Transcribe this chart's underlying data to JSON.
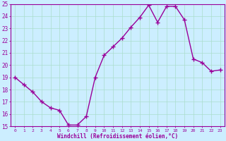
{
  "x": [
    0,
    1,
    2,
    3,
    4,
    5,
    6,
    7,
    8,
    9,
    10,
    11,
    12,
    13,
    14,
    15,
    16,
    17,
    18,
    19,
    20,
    21,
    22,
    23
  ],
  "y": [
    19.0,
    18.4,
    17.8,
    17.0,
    16.5,
    16.3,
    15.1,
    15.1,
    15.8,
    19.0,
    20.8,
    21.5,
    22.2,
    23.1,
    23.9,
    24.9,
    23.5,
    24.8,
    24.8,
    23.7,
    20.5,
    20.2,
    19.5,
    19.6
  ],
  "line_color": "#990099",
  "marker": "+",
  "marker_size": 4,
  "bg_color": "#cceeff",
  "grid_color": "#aaddcc",
  "axis_label_color": "#990099",
  "tick_color": "#990099",
  "xlabel": "Windchill (Refroidissement éolien,°C)",
  "xlim": [
    -0.5,
    23.5
  ],
  "ylim": [
    15,
    25
  ],
  "yticks": [
    15,
    16,
    17,
    18,
    19,
    20,
    21,
    22,
    23,
    24,
    25
  ],
  "xticks": [
    0,
    1,
    2,
    3,
    4,
    5,
    6,
    7,
    8,
    9,
    10,
    11,
    12,
    13,
    14,
    15,
    16,
    17,
    18,
    19,
    20,
    21,
    22,
    23
  ],
  "xtick_labels": [
    "0",
    "1",
    "2",
    "3",
    "4",
    "5",
    "6",
    "7",
    "8",
    "9",
    "10",
    "11",
    "12",
    "13",
    "14",
    "15",
    "16",
    "17",
    "18",
    "19",
    "20",
    "21",
    "22",
    "23"
  ],
  "linewidth": 1.0
}
